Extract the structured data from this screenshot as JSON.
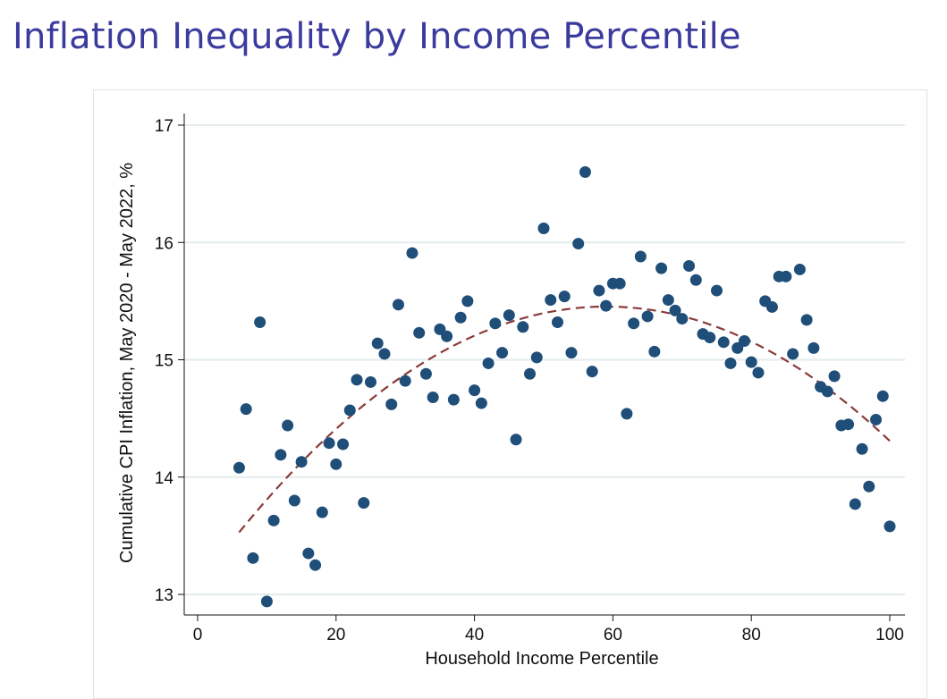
{
  "page": {
    "title": "Inflation Inequality by Income Percentile"
  },
  "chart_data": {
    "type": "scatter",
    "xlabel": "Household Income Percentile",
    "ylabel": "Cumulative CPI Inflation, May 2020 - May 2022, %",
    "xlim": [
      0,
      100
    ],
    "ylim": [
      13,
      17
    ],
    "xticks": [
      0,
      20,
      40,
      60,
      80,
      100
    ],
    "yticks": [
      13,
      14,
      15,
      16,
      17
    ],
    "grid": "horizontal",
    "colors": {
      "points": "#1f4e79",
      "fit": "#8b3a3a",
      "grid": "#e3ecec"
    },
    "fit_line": {
      "style": "dashed",
      "kind": "quadratic",
      "points": [
        [
          6,
          13.52
        ],
        [
          20,
          14.42
        ],
        [
          40,
          15.21
        ],
        [
          60,
          15.46
        ],
        [
          80,
          15.13
        ],
        [
          100,
          14.32
        ]
      ]
    },
    "points": [
      [
        6,
        14.08
      ],
      [
        7,
        14.58
      ],
      [
        8,
        13.31
      ],
      [
        9,
        15.32
      ],
      [
        10,
        12.94
      ],
      [
        11,
        13.63
      ],
      [
        12,
        14.19
      ],
      [
        13,
        14.44
      ],
      [
        14,
        13.8
      ],
      [
        15,
        14.13
      ],
      [
        16,
        13.35
      ],
      [
        17,
        13.25
      ],
      [
        18,
        13.7
      ],
      [
        19,
        14.29
      ],
      [
        20,
        14.11
      ],
      [
        21,
        14.28
      ],
      [
        22,
        14.57
      ],
      [
        23,
        14.83
      ],
      [
        24,
        13.78
      ],
      [
        25,
        14.81
      ],
      [
        26,
        15.14
      ],
      [
        27,
        15.05
      ],
      [
        28,
        14.62
      ],
      [
        29,
        15.47
      ],
      [
        30,
        14.82
      ],
      [
        31,
        15.91
      ],
      [
        32,
        15.23
      ],
      [
        33,
        14.88
      ],
      [
        34,
        14.68
      ],
      [
        35,
        15.26
      ],
      [
        36,
        15.2
      ],
      [
        37,
        14.66
      ],
      [
        38,
        15.36
      ],
      [
        39,
        15.5
      ],
      [
        40,
        14.74
      ],
      [
        41,
        14.63
      ],
      [
        42,
        14.97
      ],
      [
        43,
        15.31
      ],
      [
        44,
        15.06
      ],
      [
        45,
        15.38
      ],
      [
        46,
        14.32
      ],
      [
        47,
        15.28
      ],
      [
        48,
        14.88
      ],
      [
        49,
        15.02
      ],
      [
        50,
        16.12
      ],
      [
        51,
        15.51
      ],
      [
        52,
        15.32
      ],
      [
        53,
        15.54
      ],
      [
        54,
        15.06
      ],
      [
        55,
        15.99
      ],
      [
        56,
        16.6
      ],
      [
        57,
        14.9
      ],
      [
        58,
        15.59
      ],
      [
        59,
        15.46
      ],
      [
        60,
        15.65
      ],
      [
        61,
        15.65
      ],
      [
        62,
        14.54
      ],
      [
        63,
        15.31
      ],
      [
        64,
        15.88
      ],
      [
        65,
        15.37
      ],
      [
        66,
        15.07
      ],
      [
        67,
        15.78
      ],
      [
        68,
        15.51
      ],
      [
        69,
        15.42
      ],
      [
        70,
        15.35
      ],
      [
        71,
        15.8
      ],
      [
        72,
        15.68
      ],
      [
        73,
        15.22
      ],
      [
        74,
        15.19
      ],
      [
        75,
        15.59
      ],
      [
        76,
        15.15
      ],
      [
        77,
        14.97
      ],
      [
        78,
        15.1
      ],
      [
        79,
        15.16
      ],
      [
        80,
        14.98
      ],
      [
        81,
        14.89
      ],
      [
        82,
        15.5
      ],
      [
        83,
        15.45
      ],
      [
        84,
        15.71
      ],
      [
        85,
        15.71
      ],
      [
        86,
        15.05
      ],
      [
        87,
        15.77
      ],
      [
        88,
        15.34
      ],
      [
        89,
        15.1
      ],
      [
        90,
        14.77
      ],
      [
        91,
        14.73
      ],
      [
        92,
        14.86
      ],
      [
        93,
        14.44
      ],
      [
        94,
        14.45
      ],
      [
        95,
        13.77
      ],
      [
        96,
        14.24
      ],
      [
        97,
        13.92
      ],
      [
        98,
        14.49
      ],
      [
        99,
        14.69
      ],
      [
        100,
        13.58
      ]
    ]
  }
}
